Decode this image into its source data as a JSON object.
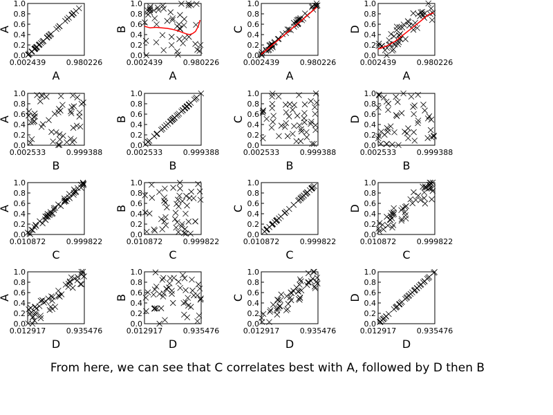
{
  "caption": "From here, we can see that C correlates best with A, followed by D then B",
  "colors": {
    "marker": "#000000",
    "fit_line": "#ff0000",
    "frame": "#000000",
    "background": "#ffffff"
  },
  "chart_data": {
    "type": "scatter",
    "layout": "4x4 scatter-plot matrix",
    "variables": [
      "A",
      "B",
      "C",
      "D"
    ],
    "marker": "x",
    "ylim": [
      0,
      1
    ],
    "yticks": [
      "0.0",
      "0.2",
      "0.4",
      "0.6",
      "0.8",
      "1.0"
    ],
    "panels": [
      {
        "x_var": "A",
        "y_var": "A",
        "xlabel": "A",
        "ylabel": "A",
        "xticks": [
          "0.002439",
          "0.980226"
        ],
        "pattern": "identity",
        "fit_line": []
      },
      {
        "x_var": "A",
        "y_var": "B",
        "xlabel": "A",
        "ylabel": "B",
        "xticks": [
          "0.002439",
          "0.980226"
        ],
        "pattern": "uniform",
        "fit_line": [
          [
            0.0,
            0.56
          ],
          [
            0.1,
            0.53
          ],
          [
            0.2,
            0.54
          ],
          [
            0.3,
            0.53
          ],
          [
            0.4,
            0.52
          ],
          [
            0.5,
            0.5
          ],
          [
            0.6,
            0.47
          ],
          [
            0.7,
            0.43
          ],
          [
            0.75,
            0.41
          ],
          [
            0.8,
            0.4
          ],
          [
            0.85,
            0.42
          ],
          [
            0.9,
            0.46
          ],
          [
            0.95,
            0.56
          ],
          [
            0.98,
            0.68
          ]
        ]
      },
      {
        "x_var": "A",
        "y_var": "C",
        "xlabel": "A",
        "ylabel": "C",
        "xticks": [
          "0.002439",
          "0.980226"
        ],
        "pattern": "tight",
        "fit_line": [
          [
            0.0,
            0.02
          ],
          [
            0.25,
            0.25
          ],
          [
            0.5,
            0.48
          ],
          [
            0.75,
            0.71
          ],
          [
            0.98,
            0.93
          ]
        ]
      },
      {
        "x_var": "A",
        "y_var": "D",
        "xlabel": "A",
        "ylabel": "D",
        "xticks": [
          "0.002439",
          "0.980226"
        ],
        "pattern": "loose",
        "fit_line": [
          [
            0.0,
            0.12
          ],
          [
            0.15,
            0.18
          ],
          [
            0.3,
            0.27
          ],
          [
            0.45,
            0.4
          ],
          [
            0.6,
            0.53
          ],
          [
            0.75,
            0.66
          ],
          [
            0.88,
            0.78
          ],
          [
            0.98,
            0.82
          ]
        ]
      },
      {
        "x_var": "B",
        "y_var": "A",
        "xlabel": "B",
        "ylabel": "A",
        "xticks": [
          "0.002533",
          "0.999388"
        ],
        "pattern": "uniform",
        "fit_line": []
      },
      {
        "x_var": "B",
        "y_var": "B",
        "xlabel": "B",
        "ylabel": "B",
        "xticks": [
          "0.002533",
          "0.999388"
        ],
        "pattern": "identity",
        "fit_line": []
      },
      {
        "x_var": "B",
        "y_var": "C",
        "xlabel": "B",
        "ylabel": "C",
        "xticks": [
          "0.002533",
          "0.999388"
        ],
        "pattern": "uniform",
        "fit_line": []
      },
      {
        "x_var": "B",
        "y_var": "D",
        "xlabel": "B",
        "ylabel": "D",
        "xticks": [
          "0.002533",
          "0.999388"
        ],
        "pattern": "uniform",
        "fit_line": []
      },
      {
        "x_var": "C",
        "y_var": "A",
        "xlabel": "C",
        "ylabel": "A",
        "xticks": [
          "0.010872",
          "0.999822"
        ],
        "pattern": "tight",
        "fit_line": []
      },
      {
        "x_var": "C",
        "y_var": "B",
        "xlabel": "C",
        "ylabel": "B",
        "xticks": [
          "0.010872",
          "0.999822"
        ],
        "pattern": "uniform",
        "fit_line": []
      },
      {
        "x_var": "C",
        "y_var": "C",
        "xlabel": "C",
        "ylabel": "C",
        "xticks": [
          "0.010872",
          "0.999822"
        ],
        "pattern": "identity",
        "fit_line": []
      },
      {
        "x_var": "C",
        "y_var": "D",
        "xlabel": "C",
        "ylabel": "D",
        "xticks": [
          "0.010872",
          "0.999822"
        ],
        "pattern": "loose",
        "fit_line": []
      },
      {
        "x_var": "D",
        "y_var": "A",
        "xlabel": "D",
        "ylabel": "A",
        "xticks": [
          "0.012917",
          "0.935476"
        ],
        "pattern": "loose",
        "fit_line": []
      },
      {
        "x_var": "D",
        "y_var": "B",
        "xlabel": "D",
        "ylabel": "B",
        "xticks": [
          "0.012917",
          "0.935476"
        ],
        "pattern": "uniform",
        "fit_line": []
      },
      {
        "x_var": "D",
        "y_var": "C",
        "xlabel": "D",
        "ylabel": "C",
        "xticks": [
          "0.012917",
          "0.935476"
        ],
        "pattern": "loose",
        "fit_line": []
      },
      {
        "x_var": "D",
        "y_var": "D",
        "xlabel": "D",
        "ylabel": "D",
        "xticks": [
          "0.012917",
          "0.935476"
        ],
        "pattern": "identity",
        "fit_line": []
      }
    ]
  }
}
